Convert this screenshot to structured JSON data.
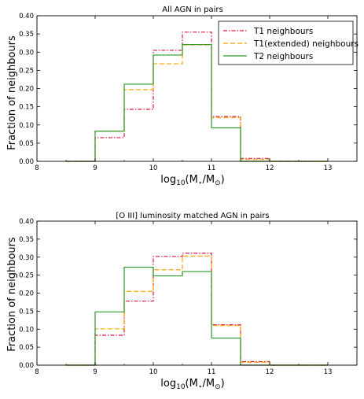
{
  "chart_data": [
    {
      "type": "step",
      "title": "All AGN in pairs",
      "xlabel": "log₁₀(M⋆/M⊙)",
      "ylabel": "Fraction of neighbours",
      "xlim": [
        8,
        13.5
      ],
      "ylim": [
        0,
        0.4
      ],
      "xticks": [
        "8",
        "9",
        "10",
        "11",
        "12",
        "13"
      ],
      "yticks": [
        "0.00",
        "0.05",
        "0.10",
        "0.15",
        "0.20",
        "0.25",
        "0.30",
        "0.35",
        "0.40"
      ],
      "bin_edges": [
        8.5,
        9,
        9.5,
        10,
        10.5,
        11,
        11.5,
        12,
        12.5,
        13
      ],
      "legend_position": "top-right",
      "series": [
        {
          "name": "T1 neighbours",
          "color": "#dc143c",
          "style": "dashdot",
          "values": [
            0.0,
            0.065,
            0.143,
            0.305,
            0.355,
            0.123,
            0.008,
            0.0,
            0.0
          ]
        },
        {
          "name": "T1(extended) neighbours",
          "color": "#ffa500",
          "style": "dashed",
          "values": [
            0.0,
            0.083,
            0.197,
            0.268,
            0.32,
            0.12,
            0.005,
            0.0,
            0.0
          ]
        },
        {
          "name": "T2 neighbours",
          "color": "#2a9a2a",
          "style": "solid",
          "values": [
            0.0,
            0.083,
            0.212,
            0.292,
            0.321,
            0.092,
            0.0,
            0.0,
            0.0
          ]
        }
      ]
    },
    {
      "type": "step",
      "title": "[O III] luminosity matched AGN in pairs",
      "xlabel": "log₁₀(M⋆/M⊙)",
      "ylabel": "Fraction of neighbours",
      "xlim": [
        8,
        13.5
      ],
      "ylim": [
        0,
        0.4
      ],
      "xticks": [
        "8",
        "9",
        "10",
        "11",
        "12",
        "13"
      ],
      "yticks": [
        "0.00",
        "0.05",
        "0.10",
        "0.15",
        "0.20",
        "0.25",
        "0.30",
        "0.35",
        "0.40"
      ],
      "bin_edges": [
        8.5,
        9,
        9.5,
        10,
        10.5,
        11,
        11.5,
        12,
        12.5,
        13
      ],
      "series": [
        {
          "name": "T1 neighbours",
          "color": "#dc143c",
          "style": "dashdot",
          "values": [
            0.0,
            0.083,
            0.178,
            0.302,
            0.311,
            0.112,
            0.01,
            0.0,
            0.0
          ]
        },
        {
          "name": "T1(extended) neighbours",
          "color": "#ffa500",
          "style": "dashed",
          "values": [
            0.0,
            0.101,
            0.205,
            0.265,
            0.303,
            0.11,
            0.008,
            0.0,
            0.0
          ]
        },
        {
          "name": "T2 neighbours",
          "color": "#2a9a2a",
          "style": "solid",
          "values": [
            0.0,
            0.148,
            0.272,
            0.248,
            0.26,
            0.075,
            0.0,
            0.0,
            0.0
          ]
        }
      ]
    }
  ]
}
